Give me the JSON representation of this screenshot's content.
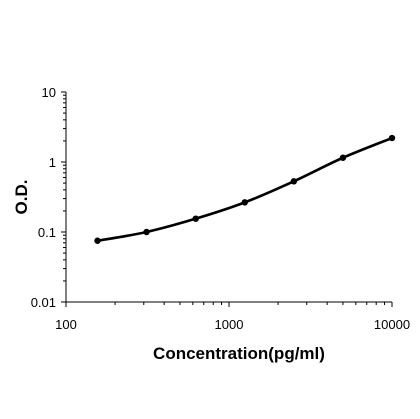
{
  "chart_data": {
    "type": "line",
    "title": "",
    "xlabel": "Concentration(pg/ml)",
    "ylabel": "O.D.",
    "x_scale": "log",
    "y_scale": "log",
    "xlim": [
      100,
      10000
    ],
    "ylim": [
      0.01,
      10
    ],
    "x_ticks": [
      "100",
      "1000",
      "10000"
    ],
    "y_ticks": [
      "0.01",
      "0.1",
      "1",
      "10"
    ],
    "grid": false,
    "legend": "none",
    "line_color": "#000000",
    "series": [
      {
        "x": [
          156,
          312,
          625,
          1250,
          2500,
          5000,
          10000
        ],
        "y": [
          0.075,
          0.1,
          0.155,
          0.265,
          0.53,
          1.15,
          2.2
        ]
      }
    ]
  }
}
